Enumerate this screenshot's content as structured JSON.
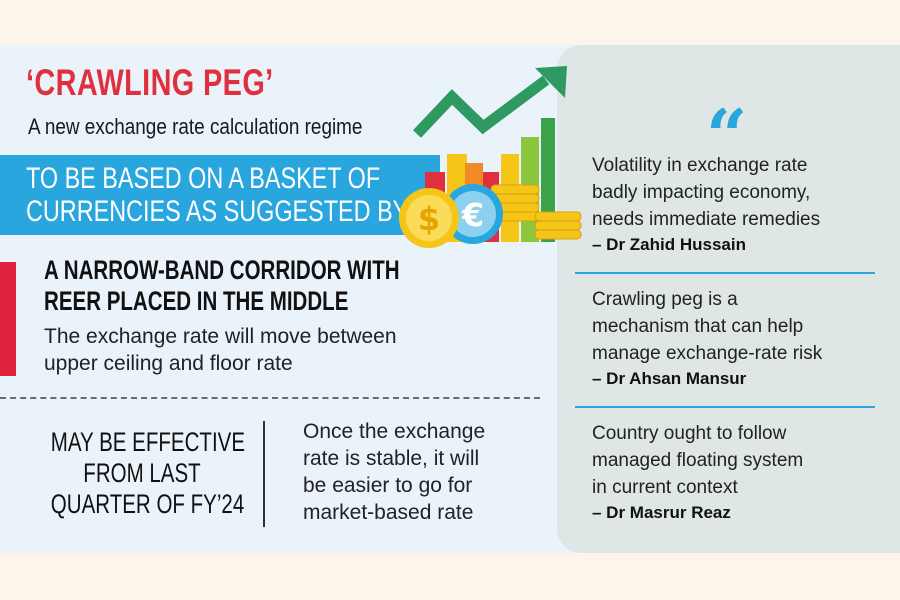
{
  "left": {
    "headline": "‘CRAWLING PEG’",
    "subheading": "A new exchange rate calculation regime",
    "banner": {
      "line1": "TO BE BASED ON A BASKET OF",
      "line2": "CURRENCIES AS SUGGESTED BY IMF"
    },
    "corridor": {
      "title_line1": "A NARROW-BAND CORRIDOR WITH",
      "title_line2": "REER PLACED IN THE MIDDLE",
      "body_line1": "The exchange rate will move between",
      "body_line2": "upper ceiling and floor rate"
    },
    "effective": {
      "line1": "MAY BE EFFECTIVE",
      "line2": "FROM LAST",
      "line3": "QUARTER OF FY’24"
    },
    "stable": {
      "line1": "Once the exchange",
      "line2": "rate is stable, it will",
      "line3": "be easier to go for",
      "line4": "market-based rate"
    }
  },
  "illustration": {
    "dollar_coin_symbol": "$",
    "euro_coin_symbol": "€",
    "arrow_color": "#2e9a62",
    "coin_gold": "#f5c518",
    "coin_blue": "#2aa6df"
  },
  "quotes": {
    "mark": "“",
    "items": [
      {
        "line1": "Volatility in exchange rate",
        "line2": "badly impacting economy,",
        "line3": "needs immediate remedies",
        "author": "– Dr Zahid Hussain"
      },
      {
        "line1": "Crawling peg is a",
        "line2": "mechanism that can help",
        "line3": "manage exchange-rate risk",
        "author": "– Dr Ahsan Mansur"
      },
      {
        "line1": "Country ought to follow",
        "line2": "managed floating system",
        "line3": "in current context",
        "author": "– Dr Masrur Reaz"
      }
    ]
  },
  "colors": {
    "headline_red": "#e0303f",
    "banner_blue": "#2aa6df",
    "accent_red": "#e0233d",
    "panel_bg": "#eaf3fa",
    "quote_panel_bg": "#dfe7e6"
  }
}
